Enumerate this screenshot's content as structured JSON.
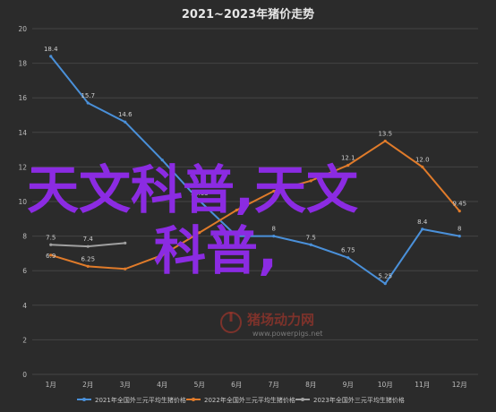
{
  "chart_data": {
    "type": "line",
    "title": "2021~2023年猪价走势",
    "categories": [
      "1月",
      "2月",
      "3月",
      "4月",
      "5月",
      "6月",
      "7月",
      "8月",
      "9月",
      "10月",
      "11月",
      "12月"
    ],
    "ylim": [
      0,
      20
    ],
    "yticks": [
      0,
      2,
      4,
      6,
      8,
      10,
      12,
      14,
      16,
      18,
      20
    ],
    "grid": true,
    "legend_position": "bottom",
    "series": [
      {
        "name": "2021年全国外三元平均生猪价格",
        "color": "#4a90d9",
        "values": [
          18.4,
          15.7,
          14.6,
          12.4,
          10.05,
          8.0,
          8.0,
          7.5,
          6.75,
          5.25,
          8.4,
          8.0
        ],
        "labels": [
          "18.4",
          "15.7",
          "14.6",
          "",
          "",
          "",
          "8",
          "7.5",
          "6.75",
          "5.25",
          "8.4",
          "8"
        ]
      },
      {
        "name": "2022年全国外三元平均生猪价格",
        "color": "#e07b2a",
        "values": [
          6.9,
          6.25,
          6.1,
          6.9,
          8.2,
          9.5,
          10.6,
          11.2,
          12.1,
          13.5,
          12.0,
          9.45
        ],
        "labels": [
          "",
          "6.25",
          "",
          "",
          "",
          "",
          "",
          "",
          "12.1",
          "13.5",
          "12.0",
          "9.45"
        ]
      },
      {
        "name": "2023年全国外三元平均生猪价格",
        "color": "#a0a0a0",
        "values": [
          7.5,
          7.4,
          7.6,
          null,
          null,
          null,
          null,
          null,
          null,
          null,
          null,
          null
        ],
        "labels": [
          "7.5",
          "7.4",
          "",
          "",
          "",
          "",
          "",
          "",
          "",
          "",
          "",
          ""
        ]
      }
    ],
    "annotations": [
      "6.9",
      "10.05",
      "8"
    ]
  },
  "overlay": {
    "line1": "天文科普,天文",
    "line2": "科普,"
  },
  "watermark": {
    "name": "猪场动力网",
    "url": "www.powerpigs.net"
  }
}
